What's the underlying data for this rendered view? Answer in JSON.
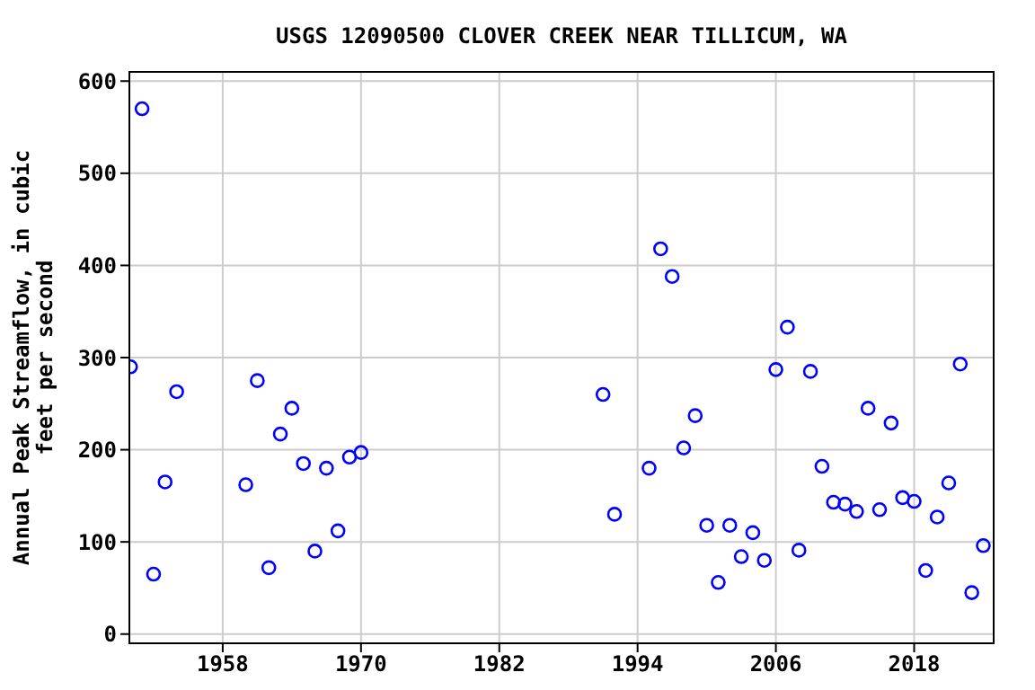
{
  "chart_data": {
    "type": "scatter",
    "title": "USGS 12090500 CLOVER CREEK NEAR TILLICUM, WA",
    "ylabel": "Annual Peak Streamflow, in cubic feet per second",
    "x": [
      1950,
      1951,
      1952,
      1953,
      1954,
      1960,
      1961,
      1962,
      1963,
      1964,
      1965,
      1966,
      1967,
      1968,
      1969,
      1970,
      1991,
      1992,
      1995,
      1996,
      1997,
      1998,
      1999,
      2000,
      2001,
      2002,
      2003,
      2004,
      2005,
      2006,
      2007,
      2008,
      2009,
      2010,
      2011,
      2012,
      2013,
      2014,
      2015,
      2016,
      2017,
      2018,
      2019,
      2020,
      2021,
      2022,
      2023,
      2024
    ],
    "series": [
      {
        "color": "#0000ff",
        "values": [
          290,
          570,
          65,
          165,
          263,
          162,
          275,
          72,
          217,
          245,
          185,
          90,
          180,
          112,
          192,
          197,
          260,
          130,
          180,
          418,
          388,
          202,
          237,
          118,
          56,
          118,
          84,
          110,
          80,
          287,
          333,
          91,
          285,
          182,
          143,
          141,
          133,
          245,
          135,
          229,
          148,
          144,
          69,
          127,
          164,
          293,
          45,
          96
        ]
      }
    ],
    "xlim": [
      1949.9,
      2024.9
    ],
    "xticks": [
      1958,
      1970,
      1982,
      1994,
      2006,
      2018
    ],
    "ylim": [
      -10,
      610
    ],
    "yticks": [
      0,
      100,
      200,
      300,
      400,
      500,
      600
    ],
    "grid": true,
    "marker": "circle"
  }
}
